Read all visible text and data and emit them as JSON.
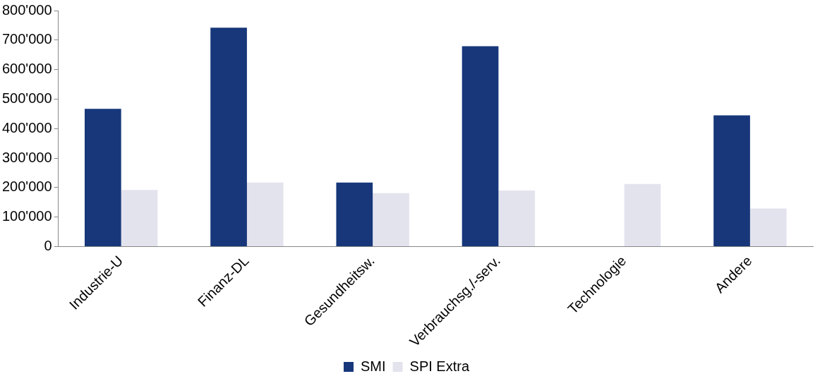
{
  "chart_data": {
    "type": "bar",
    "categories": [
      "Industrie-U",
      "Finanz-DL",
      "Gesundheitsw.",
      "Verbrauchsg./-serv.",
      "Technologie",
      "Andere"
    ],
    "series": [
      {
        "name": "SMI",
        "color": "#17377a",
        "values": [
          467000,
          742000,
          217000,
          679000,
          0,
          445000
        ]
      },
      {
        "name": "SPI Extra",
        "color": "#e3e3ee",
        "values": [
          192000,
          217000,
          181000,
          190000,
          212000,
          129000
        ]
      }
    ],
    "ylim": [
      0,
      800000
    ],
    "yticks": [
      {
        "value": 0,
        "label": "0"
      },
      {
        "value": 100000,
        "label": "100'000"
      },
      {
        "value": 200000,
        "label": "200'000"
      },
      {
        "value": 300000,
        "label": "300'000"
      },
      {
        "value": 400000,
        "label": "400'000"
      },
      {
        "value": 500000,
        "label": "500'000"
      },
      {
        "value": 600000,
        "label": "600'000"
      },
      {
        "value": 700000,
        "label": "700'000"
      },
      {
        "value": 800000,
        "label": "800'000"
      }
    ],
    "grid": false,
    "legend": "bottom"
  }
}
